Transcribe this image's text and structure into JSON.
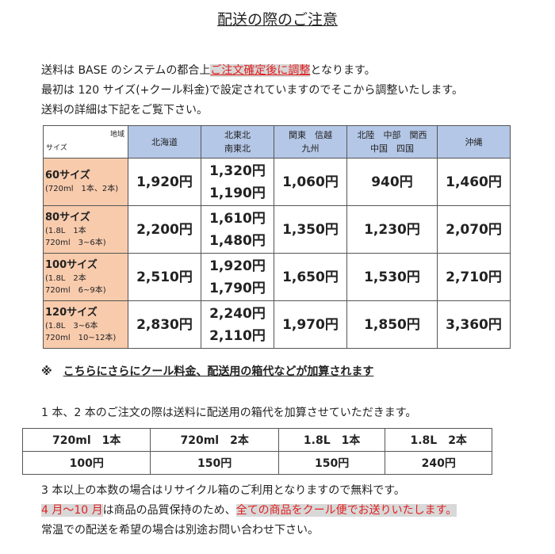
{
  "title": "配送の際のご注意",
  "intro": {
    "l1a": "送料は BASE のシステムの都合上",
    "l1b": "ご注文確定後に調整",
    "l1c": "となります。",
    "l2": "最初は 120 サイズ(+クール料金)で設定されていますのでそこから調整いたします。",
    "l3": "送料の詳細は下記をご覧下さい。"
  },
  "rates": {
    "corner_region": "地域",
    "corner_size": "サイズ",
    "regions": [
      [
        "北海道"
      ],
      [
        "北東北",
        "南東北"
      ],
      [
        "関東　信越",
        "九州"
      ],
      [
        "北陸　中部　関西",
        "中国　四国"
      ],
      [
        "沖縄"
      ]
    ],
    "rows": [
      {
        "size": "60サイズ",
        "detail": [
          "(720ml　1本、2本)"
        ],
        "prices": [
          [
            "1,920円"
          ],
          [
            "1,320円",
            "1,190円"
          ],
          [
            "1,060円"
          ],
          [
            "940円"
          ],
          [
            "1,460円"
          ]
        ]
      },
      {
        "size": "80サイズ",
        "detail": [
          "(1.8L　1本",
          "720ml　3~6本)"
        ],
        "prices": [
          [
            "2,200円"
          ],
          [
            "1,610円",
            "1,480円"
          ],
          [
            "1,350円"
          ],
          [
            "1,230円"
          ],
          [
            "2,070円"
          ]
        ]
      },
      {
        "size": "100サイズ",
        "detail": [
          "(1.8L　2本",
          "720ml　6~9本)"
        ],
        "prices": [
          [
            "2,510円"
          ],
          [
            "1,920円",
            "1,790円"
          ],
          [
            "1,650円"
          ],
          [
            "1,530円"
          ],
          [
            "2,710円"
          ]
        ]
      },
      {
        "size": "120サイズ",
        "detail": [
          "(1.8L　3~6本",
          "720ml　10~12本)"
        ],
        "prices": [
          [
            "2,830円"
          ],
          [
            "2,240円",
            "2,110円"
          ],
          [
            "1,970円"
          ],
          [
            "1,850円"
          ],
          [
            "3,360円"
          ]
        ]
      }
    ],
    "colors": {
      "header": "#b4c7e7",
      "size": "#f8cbad"
    }
  },
  "note_mark": "※",
  "note": "こちらにさらにクール料金、配送用の箱代などが加算されます",
  "box_intro": "1 本、2 本のご注文の際は送料に配送用の箱代を加算させていただきます。",
  "box": {
    "headers": [
      "720ml　1本",
      "720ml　2本",
      "1.8L　1本",
      "1.8L　2本"
    ],
    "prices": [
      "100円",
      "150円",
      "150円",
      "240円"
    ]
  },
  "footer": {
    "l1": "3 本以上の本数の場合はリサイクル箱のご利用となりますので無料です。",
    "l2a": "4 月～10 月",
    "l2b": "は商品の品質保持のため、",
    "l2c": "全ての商品をクール便でお送りいたします。",
    "l3": "常温での配送を希望の場合は別途お問い合わせ下さい。"
  },
  "accent": "#e02020"
}
